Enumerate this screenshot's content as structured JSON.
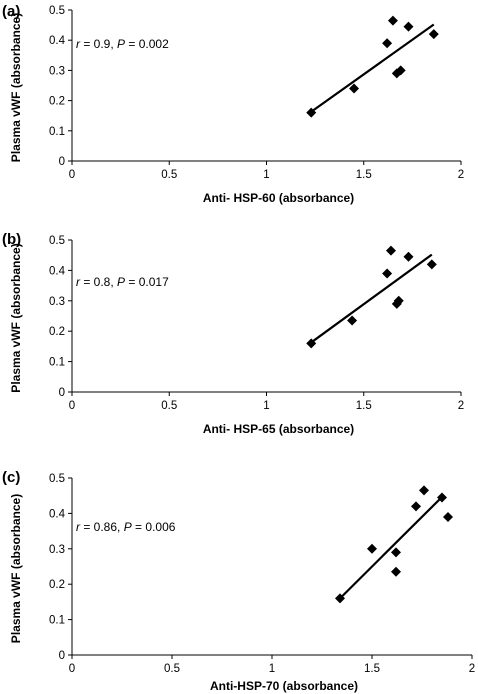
{
  "chart_data": [
    {
      "type": "scatter",
      "panel_label": "(a)",
      "xlabel": "Anti- HSP-60 (absorbance)",
      "ylabel": "Plasma vWF (absorbance)",
      "annotation": {
        "r_sym": "r",
        "r_text": " = 0.9, ",
        "p_sym": "P",
        "p_text": " = 0.002"
      },
      "xlim": [
        0,
        2
      ],
      "ylim": [
        0,
        0.5
      ],
      "xticks": [
        0,
        0.5,
        1,
        1.5,
        2
      ],
      "xtick_labels": [
        "0",
        "0.5",
        "1",
        "1.5",
        "2"
      ],
      "yticks": [
        0,
        0.1,
        0.2,
        0.3,
        0.4,
        0.5
      ],
      "ytick_labels": [
        "0",
        "0.1",
        "0.2",
        "0.3",
        "0.4",
        "0.5"
      ],
      "points": [
        {
          "x": 1.23,
          "y": 0.16
        },
        {
          "x": 1.45,
          "y": 0.24
        },
        {
          "x": 1.62,
          "y": 0.39
        },
        {
          "x": 1.65,
          "y": 0.465
        },
        {
          "x": 1.67,
          "y": 0.29
        },
        {
          "x": 1.69,
          "y": 0.3
        },
        {
          "x": 1.73,
          "y": 0.445
        },
        {
          "x": 1.86,
          "y": 0.42
        }
      ],
      "trendline": {
        "x": [
          1.23,
          1.86
        ],
        "y": [
          0.163,
          0.452
        ]
      },
      "marker_color": "#000000",
      "grid": false,
      "legend": false
    },
    {
      "type": "scatter",
      "panel_label": "(b)",
      "xlabel": "Anti- HSP-65 (absorbance)",
      "ylabel": "Plasma vWF (absorbance)",
      "annotation": {
        "r_sym": "r",
        "r_text": " = 0.8, ",
        "p_sym": "P",
        "p_text": " = 0.017"
      },
      "xlim": [
        0,
        2
      ],
      "ylim": [
        0,
        0.5
      ],
      "xticks": [
        0,
        0.5,
        1,
        1.5,
        2
      ],
      "xtick_labels": [
        "0",
        "0.5",
        "1",
        "1.5",
        "2"
      ],
      "yticks": [
        0,
        0.1,
        0.2,
        0.3,
        0.4,
        0.5
      ],
      "ytick_labels": [
        "0",
        "0.1",
        "0.2",
        "0.3",
        "0.4",
        "0.5"
      ],
      "points": [
        {
          "x": 1.23,
          "y": 0.16
        },
        {
          "x": 1.44,
          "y": 0.235
        },
        {
          "x": 1.62,
          "y": 0.39
        },
        {
          "x": 1.64,
          "y": 0.465
        },
        {
          "x": 1.67,
          "y": 0.29
        },
        {
          "x": 1.68,
          "y": 0.3
        },
        {
          "x": 1.73,
          "y": 0.445
        },
        {
          "x": 1.85,
          "y": 0.42
        }
      ],
      "trendline": {
        "x": [
          1.23,
          1.85
        ],
        "y": [
          0.163,
          0.452
        ]
      },
      "marker_color": "#000000",
      "grid": false,
      "legend": false
    },
    {
      "type": "scatter",
      "panel_label": "(c)",
      "xlabel": "Anti-HSP-70 (absorbance)",
      "ylabel": "Plasma vWF (absorbance)",
      "annotation": {
        "r_sym": "r",
        "r_text": " = 0.86, ",
        "p_sym": "P",
        "p_text": " = 0.006"
      },
      "xlim": [
        0,
        2
      ],
      "ylim": [
        0,
        0.5
      ],
      "xticks": [
        0,
        0.5,
        1,
        1.5,
        2
      ],
      "xtick_labels": [
        "0",
        "0.5",
        "1",
        "1.5",
        "2"
      ],
      "yticks": [
        0,
        0.1,
        0.2,
        0.3,
        0.4,
        0.5
      ],
      "ytick_labels": [
        "0",
        "0.1",
        "0.2",
        "0.3",
        "0.4",
        "0.5"
      ],
      "points": [
        {
          "x": 1.34,
          "y": 0.16
        },
        {
          "x": 1.5,
          "y": 0.3
        },
        {
          "x": 1.62,
          "y": 0.29
        },
        {
          "x": 1.62,
          "y": 0.235
        },
        {
          "x": 1.72,
          "y": 0.42
        },
        {
          "x": 1.76,
          "y": 0.465
        },
        {
          "x": 1.85,
          "y": 0.445
        },
        {
          "x": 1.88,
          "y": 0.39
        }
      ],
      "trendline": {
        "x": [
          1.34,
          1.86
        ],
        "y": [
          0.16,
          0.452
        ]
      },
      "marker_color": "#000000",
      "grid": false,
      "legend": false
    }
  ]
}
